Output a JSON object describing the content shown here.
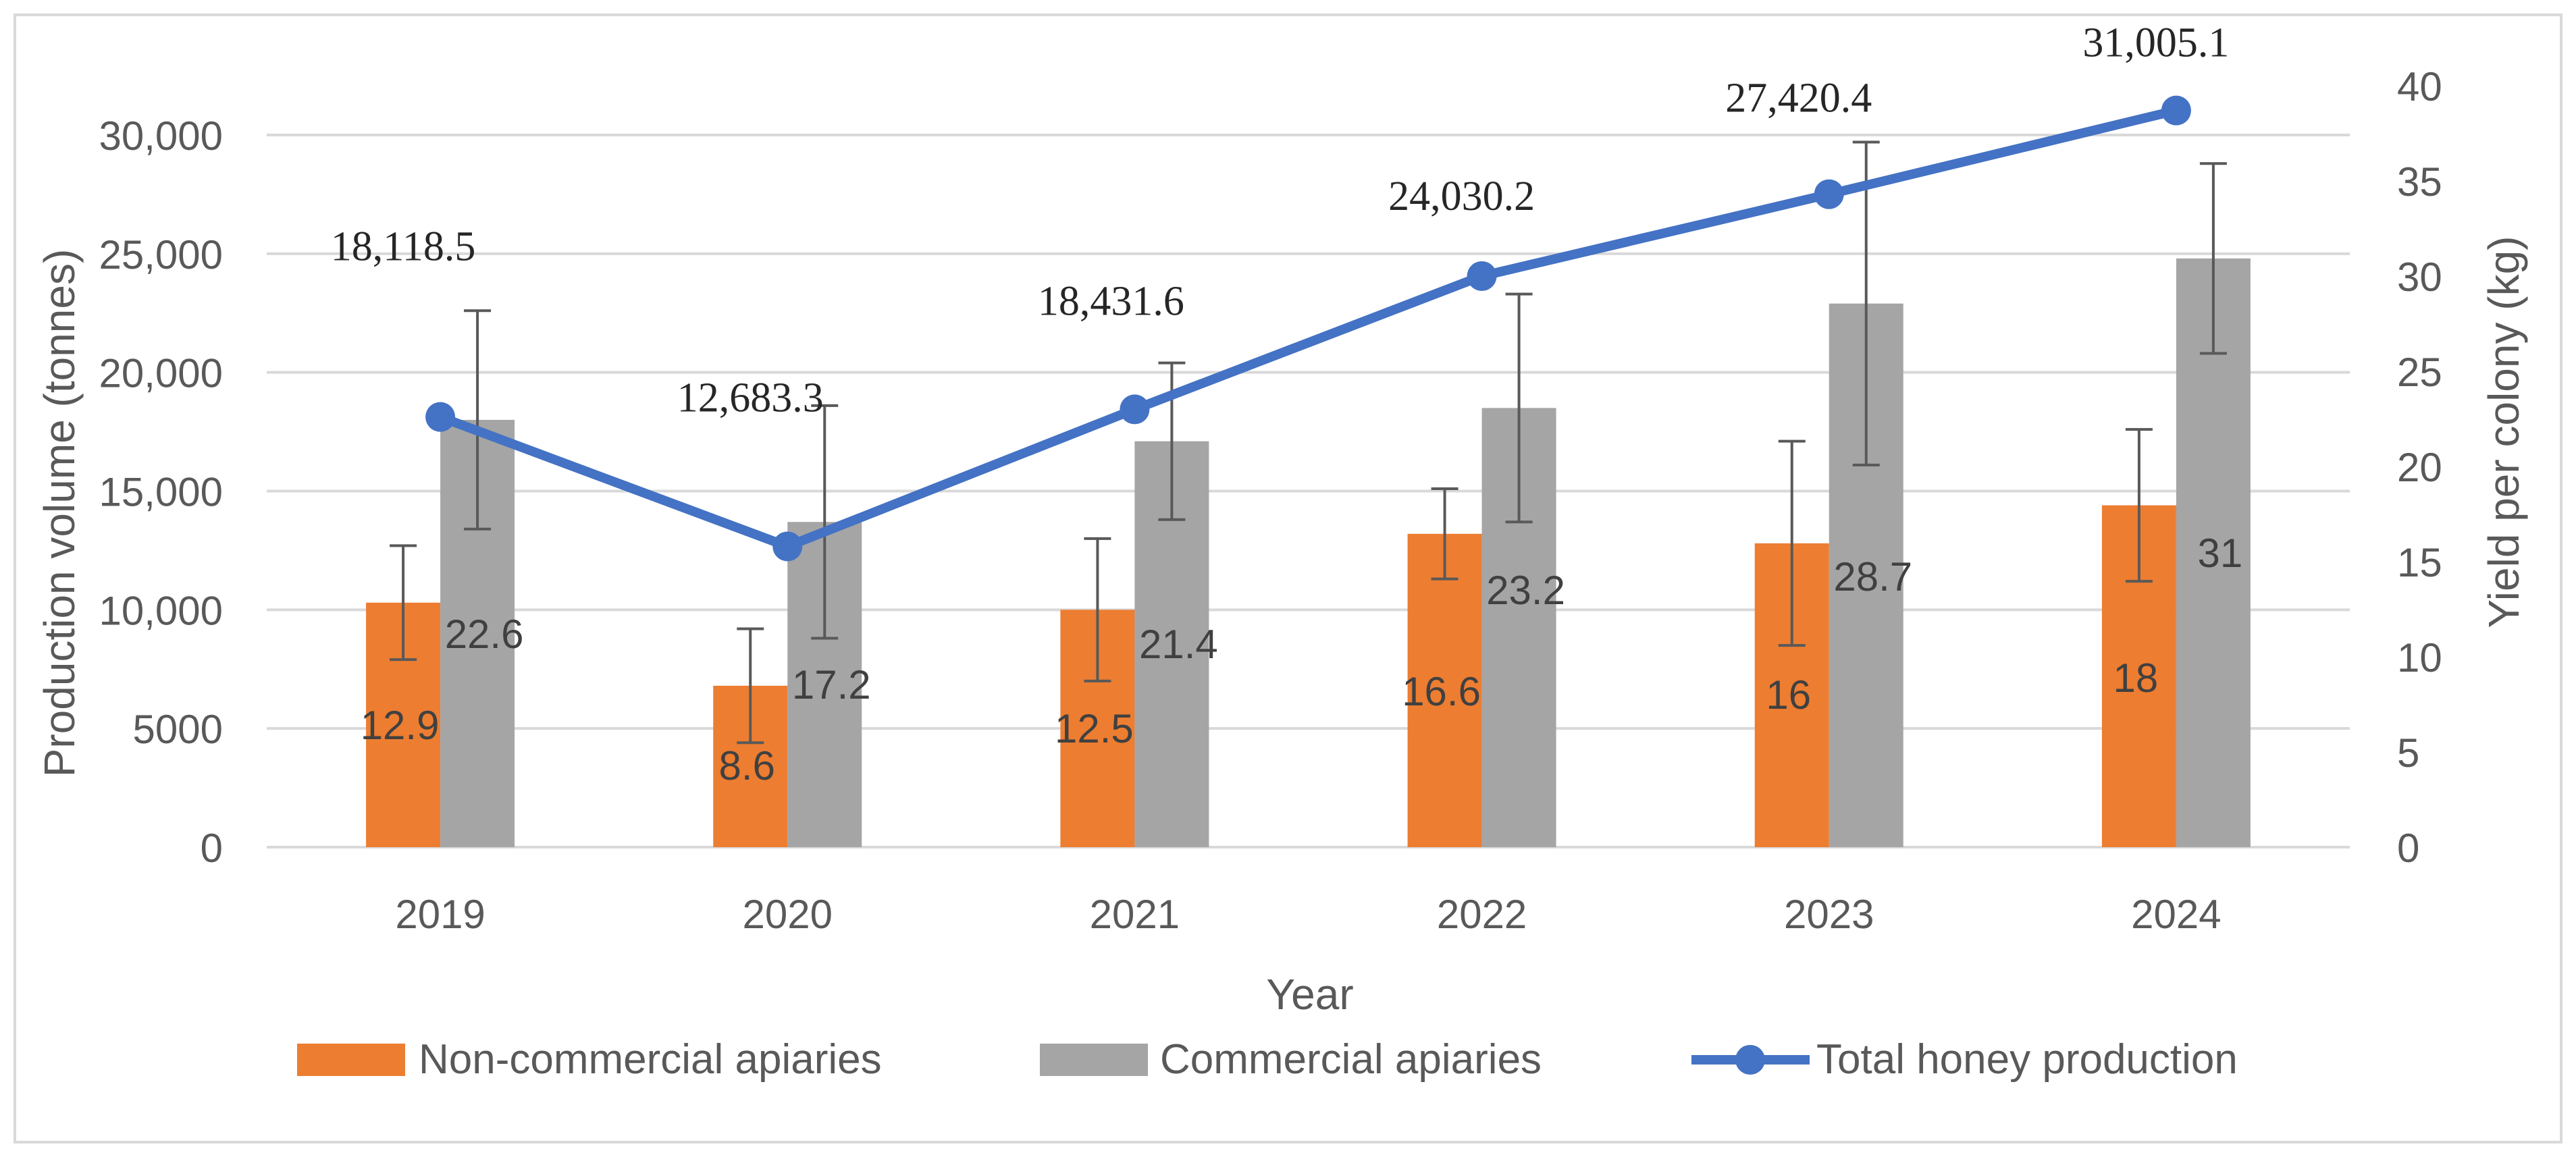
{
  "chart_data": {
    "type": "bar",
    "title": "",
    "xlabel": "Year",
    "ylabel_left": "Production volume (tonnes)",
    "ylabel_right": "Yield per colony (kg)",
    "categories": [
      "2019",
      "2020",
      "2021",
      "2022",
      "2023",
      "2024"
    ],
    "left_axis": {
      "min": 0,
      "max": 30000,
      "ticks": [
        0,
        5000,
        10000,
        15000,
        20000,
        25000,
        30000
      ],
      "tick_labels": [
        "0",
        "5000",
        "10,000",
        "15,000",
        "20,000",
        "25,000",
        "30,000"
      ]
    },
    "right_axis": {
      "min": 0,
      "max": 40,
      "ticks": [
        0,
        5,
        10,
        15,
        20,
        25,
        30,
        35,
        40
      ],
      "tick_labels": [
        "0",
        "5",
        "10",
        "15",
        "20",
        "25",
        "30",
        "35",
        "40"
      ]
    },
    "grid": true,
    "legend_position": "bottom",
    "series": [
      {
        "name": "Non-commercial apiaries",
        "type": "bar",
        "axis": "left",
        "color": "#ED7D31",
        "values": [
          10300,
          6800,
          10000,
          13200,
          12800,
          14400
        ],
        "error": [
          2400,
          2400,
          3000,
          1900,
          4300,
          3200
        ],
        "data_labels": [
          "12.9",
          "8.6",
          "12.5",
          "16.6",
          "16",
          "18"
        ]
      },
      {
        "name": "Commercial apiaries",
        "type": "bar",
        "axis": "left",
        "color": "#A5A5A5",
        "values": [
          18000,
          13700,
          17100,
          18500,
          22900,
          24800
        ],
        "error": [
          4600,
          4900,
          3300,
          4800,
          6800,
          4000
        ],
        "data_labels": [
          "22.6",
          "17.2",
          "21.4",
          "23.2",
          "28.7",
          "31"
        ]
      },
      {
        "name": "Total honey production",
        "type": "line",
        "axis": "right",
        "color": "#4472C4",
        "values": [
          22.6,
          15.8,
          23.0,
          30.0,
          34.3,
          38.7
        ],
        "data_labels": [
          "18,118.5",
          "12,683.3",
          "18,431.6",
          "24,030.2",
          "27,420.4",
          "31,005.1"
        ]
      }
    ]
  }
}
